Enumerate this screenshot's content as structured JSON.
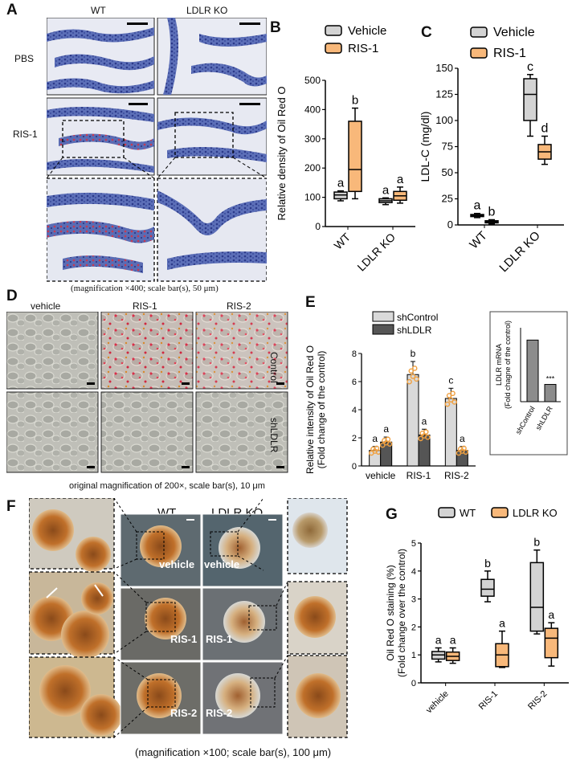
{
  "panelA": {
    "letter": "A",
    "col_wt": "WT",
    "col_ko": "LDLR KO",
    "row_pbs": "PBS",
    "row_ris1": "RIS-1",
    "caption": "(magnification ×400; scale bar(s), 50 μm)"
  },
  "panelB": {
    "letter": "B",
    "legend": [
      "Vehicle",
      "RIS-1"
    ],
    "colors": {
      "vehicle": "#d3d3d3",
      "ris": "#f8b87a"
    },
    "chart_data": {
      "type": "box",
      "ylabel": "Relative density of Oil Red O",
      "ylim": [
        0,
        500
      ],
      "yticks": [
        0,
        100,
        200,
        300,
        400,
        500
      ],
      "categories": [
        "WT",
        "LDLR KO"
      ],
      "series": [
        {
          "name": "Vehicle",
          "boxes": [
            {
              "min": 88,
              "q1": 95,
              "median": 108,
              "q3": 118,
              "max": 122,
              "letter": "a"
            },
            {
              "min": 75,
              "q1": 82,
              "median": 88,
              "q3": 95,
              "max": 98,
              "letter": "a"
            }
          ]
        },
        {
          "name": "RIS-1",
          "boxes": [
            {
              "min": 95,
              "q1": 120,
              "median": 195,
              "q3": 360,
              "max": 405,
              "letter": "b"
            },
            {
              "min": 80,
              "q1": 90,
              "median": 105,
              "q3": 120,
              "max": 135,
              "letter": "a"
            }
          ]
        }
      ]
    }
  },
  "panelC": {
    "letter": "C",
    "legend": [
      "Vehicle",
      "RIS-1"
    ],
    "chart_data": {
      "type": "box",
      "ylabel": "LDL-C (mg/dl)",
      "ylim": [
        0,
        150
      ],
      "yticks": [
        0,
        25,
        50,
        75,
        100,
        125,
        150
      ],
      "categories": [
        "WT",
        "LDLR KO"
      ],
      "series": [
        {
          "name": "Vehicle",
          "boxes": [
            {
              "min": 7,
              "q1": 8,
              "median": 9,
              "q3": 10,
              "max": 11,
              "letter": "a"
            },
            {
              "min": 85,
              "q1": 100,
              "median": 125,
              "q3": 140,
              "max": 144,
              "letter": "c"
            }
          ]
        },
        {
          "name": "RIS-1",
          "boxes": [
            {
              "min": 1,
              "q1": 2,
              "median": 3,
              "q3": 4,
              "max": 5,
              "letter": "b"
            },
            {
              "min": 58,
              "q1": 63,
              "median": 70,
              "q3": 77,
              "max": 85,
              "letter": "d"
            }
          ]
        }
      ]
    }
  },
  "panelD": {
    "letter": "D",
    "cols": [
      "vehicle",
      "RIS-1",
      "RIS-2"
    ],
    "rows": [
      "Control",
      "shLDLR"
    ],
    "caption": "original magnification of 200×, scale bar(s), 10 μm"
  },
  "panelE": {
    "letter": "E",
    "legend": [
      "shControl",
      "shLDLR"
    ],
    "colors": {
      "shcontrol": "#d9d9d9",
      "shldlr": "#555555",
      "dots": "#f0a040"
    },
    "chart_data": {
      "type": "bar",
      "ylabel": "Relative intensity of Oil Red O",
      "ylabel2": "(Fold change of the control)",
      "ylim": [
        0,
        8
      ],
      "yticks": [
        0,
        2,
        4,
        6,
        8
      ],
      "categories": [
        "vehicle",
        "RIS-1",
        "RIS-2"
      ],
      "series": [
        {
          "name": "shControl",
          "values": [
            1.1,
            6.5,
            4.8
          ],
          "letters": [
            "a",
            "b",
            "c"
          ]
        },
        {
          "name": "shLDLR",
          "values": [
            1.7,
            2.2,
            1.1
          ],
          "letters": [
            "a",
            "a",
            "a"
          ]
        }
      ]
    },
    "inset": {
      "chart_data": {
        "type": "bar",
        "ylabel": "LDLR mRNA",
        "ylabel2": "(Fold chagne of the control)",
        "categories": [
          "shControl",
          "shLDLR"
        ],
        "values": [
          1.0,
          0.28
        ],
        "annotation": "***"
      }
    }
  },
  "panelF": {
    "letter": "F",
    "col_wt": "WT",
    "col_ko": "LDLR KO",
    "labels": [
      "vehicle",
      "vehicle",
      "RIS-1",
      "RIS-1",
      "RIS-2",
      "RIS-2"
    ],
    "caption": "(magnification ×100; scale bar(s), 100 μm)"
  },
  "panelG": {
    "letter": "G",
    "legend": [
      "WT",
      "LDLR KO"
    ],
    "chart_data": {
      "type": "box",
      "ylabel": "Oil Red O staining (%)",
      "ylabel2": "(Fold change over the control)",
      "ylim": [
        0,
        5
      ],
      "yticks": [
        0,
        1,
        2,
        3,
        4,
        5
      ],
      "categories": [
        "vehicle",
        "RIS-1",
        "RIS-2"
      ],
      "series": [
        {
          "name": "WT",
          "boxes": [
            {
              "min": 0.75,
              "q1": 0.85,
              "median": 1.0,
              "q3": 1.12,
              "max": 1.25,
              "letter": "a"
            },
            {
              "min": 2.9,
              "q1": 3.1,
              "median": 3.35,
              "q3": 3.7,
              "max": 4.0,
              "letter": "b"
            },
            {
              "min": 1.75,
              "q1": 1.85,
              "median": 2.7,
              "q3": 4.3,
              "max": 4.75,
              "letter": "b"
            }
          ]
        },
        {
          "name": "LDLR KO",
          "boxes": [
            {
              "min": 0.7,
              "q1": 0.8,
              "median": 0.95,
              "q3": 1.1,
              "max": 1.25,
              "letter": "a"
            },
            {
              "min": 0.55,
              "q1": 0.58,
              "median": 1.0,
              "q3": 1.4,
              "max": 1.85,
              "letter": "a"
            },
            {
              "min": 0.6,
              "q1": 0.9,
              "median": 1.6,
              "q3": 1.95,
              "max": 2.15,
              "letter": "a"
            }
          ]
        }
      ]
    }
  }
}
